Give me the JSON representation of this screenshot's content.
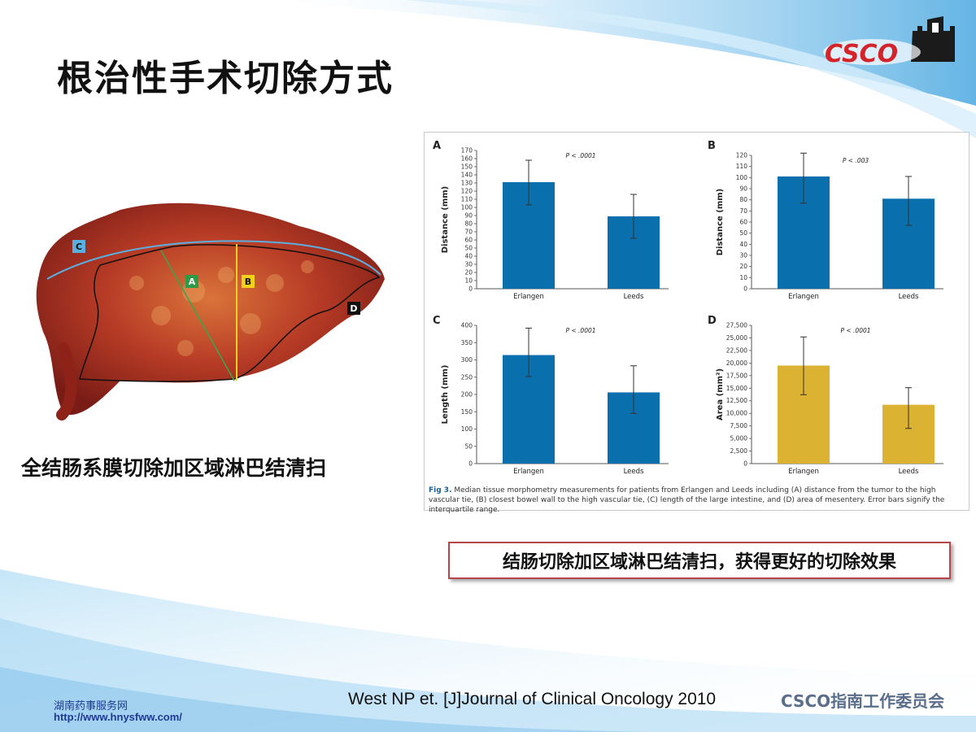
{
  "slide": {
    "title": "根治性手术切除方式",
    "logo_text": "CSCO",
    "photo_caption": "全结肠系膜切除加区域淋巴结清扫",
    "photo_labels": [
      "C",
      "A",
      "B",
      "D"
    ],
    "callout": "结肠切除加区域淋巴结清扫，获得更好的切除效果",
    "citation": "West NP et. [J]Journal of Clinical Oncology 2010",
    "site_name": "湖南药事服务网",
    "site_url": "http://www.hnysfww.com/",
    "committee": "CSCO指南工作委员会"
  },
  "figure": {
    "caption_label": "Fig 3.",
    "caption_text": "Median tissue morphometry measurements for patients from Erlangen and Leeds including (A) distance from the tumor to the high vascular tie, (B) closest bowel wall to the high vascular tie, (C) length of the large intestine, and (D) area of mesentery. Error bars signify the interquartile range."
  },
  "chart_data": [
    {
      "panel": "A",
      "type": "bar",
      "categories": [
        "Erlangen",
        "Leeds"
      ],
      "values": [
        131,
        89
      ],
      "error_low": [
        103,
        62
      ],
      "error_high": [
        158,
        116
      ],
      "ylabel": "Distance (mm)",
      "ylim": [
        0,
        170
      ],
      "ystep": 10,
      "annotation": "P < .0001",
      "color": "#0a6fad"
    },
    {
      "panel": "B",
      "type": "bar",
      "categories": [
        "Erlangen",
        "Leeds"
      ],
      "values": [
        101,
        81
      ],
      "error_low": [
        77,
        57
      ],
      "error_high": [
        122,
        101
      ],
      "ylabel": "Distance (mm)",
      "ylim": [
        0,
        120
      ],
      "ystep": 10,
      "annotation": "P < .003",
      "color": "#0a6fad"
    },
    {
      "panel": "C",
      "type": "bar",
      "categories": [
        "Erlangen",
        "Leeds"
      ],
      "values": [
        314,
        206
      ],
      "error_low": [
        252,
        145
      ],
      "error_high": [
        392,
        283
      ],
      "ylabel": "Length (mm)",
      "ylim": [
        0,
        400
      ],
      "ystep": 50,
      "annotation": "P < .0001",
      "color": "#0a6fad"
    },
    {
      "panel": "D",
      "type": "bar",
      "categories": [
        "Erlangen",
        "Leeds"
      ],
      "values": [
        19500,
        11700
      ],
      "error_low": [
        13700,
        7000
      ],
      "error_high": [
        25200,
        15100
      ],
      "ylabel": "Area (mm²)",
      "ylim": [
        0,
        27500
      ],
      "ystep": 2500,
      "annotation": "P < .0001",
      "color": "#dcb232"
    }
  ]
}
